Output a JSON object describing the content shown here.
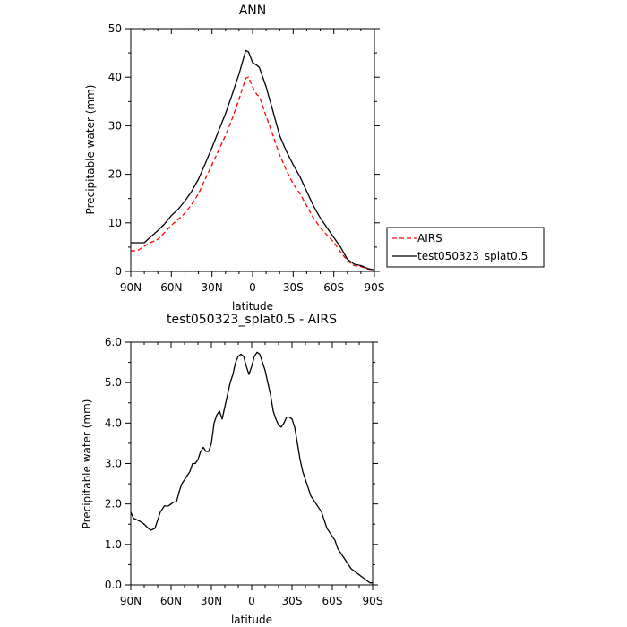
{
  "chart_data": [
    {
      "type": "line",
      "title": "ANN",
      "xlabel": "latitude",
      "ylabel": "Precipitable water (mm)",
      "x_ticks": [
        "90N",
        "60N",
        "30N",
        "0",
        "30S",
        "60S",
        "90S"
      ],
      "x_tick_values": [
        90,
        60,
        30,
        0,
        -30,
        -60,
        -90
      ],
      "xlim": [
        90,
        -90
      ],
      "ylim": [
        0,
        50
      ],
      "y_ticks": [
        "0",
        "10",
        "20",
        "30",
        "40",
        "50"
      ],
      "y_tick_values": [
        0,
        10,
        20,
        30,
        40,
        50
      ],
      "grid": false,
      "legend_position": "right, outside plot",
      "series": [
        {
          "name": "AIRS",
          "color": "#ff0000",
          "dash": "dashed",
          "x": [
            90,
            85,
            80,
            75,
            70,
            65,
            60,
            55,
            50,
            45,
            40,
            35,
            30,
            25,
            20,
            15,
            10,
            5,
            3,
            0,
            -3,
            -5,
            -10,
            -15,
            -20,
            -25,
            -30,
            -35,
            -40,
            -45,
            -50,
            -55,
            -60,
            -65,
            -70,
            -75,
            -80,
            -85,
            -90
          ],
          "values": [
            4.2,
            4.3,
            5.2,
            6.0,
            6.6,
            8.0,
            9.5,
            10.7,
            12.0,
            13.8,
            16.0,
            19.0,
            22.0,
            25.0,
            28.0,
            31.5,
            35.5,
            39.8,
            40.0,
            38.0,
            36.5,
            36.0,
            32.0,
            28.0,
            24.0,
            20.8,
            18.0,
            16.0,
            13.5,
            11.0,
            9.0,
            7.5,
            6.0,
            4.0,
            2.2,
            1.2,
            1.0,
            0.5,
            0.3
          ]
        },
        {
          "name": "test050323_splat0.5",
          "color": "#000000",
          "dash": "solid",
          "x": [
            90,
            85,
            80,
            75,
            70,
            65,
            60,
            55,
            50,
            45,
            40,
            35,
            30,
            25,
            20,
            15,
            10,
            5,
            3,
            0,
            -3,
            -5,
            -10,
            -15,
            -20,
            -25,
            -30,
            -35,
            -40,
            -45,
            -50,
            -55,
            -60,
            -65,
            -70,
            -75,
            -80,
            -85,
            -90
          ],
          "values": [
            5.9,
            5.9,
            5.9,
            7.2,
            8.4,
            9.8,
            11.5,
            12.8,
            14.5,
            16.5,
            19.0,
            22.2,
            25.5,
            29.0,
            32.5,
            36.5,
            40.7,
            45.5,
            45.2,
            43.0,
            42.5,
            42.0,
            38.0,
            33.0,
            28.0,
            24.7,
            22.0,
            19.5,
            16.5,
            13.5,
            11.0,
            9.0,
            7.0,
            5.0,
            2.5,
            1.5,
            1.2,
            0.6,
            0.3
          ]
        }
      ]
    },
    {
      "type": "line",
      "title": "test050323_splat0.5 - AIRS",
      "xlabel": "latitude",
      "ylabel": "Precipitable water (mm)",
      "x_ticks": [
        "90N",
        "60N",
        "30N",
        "0",
        "30S",
        "60S",
        "90S"
      ],
      "x_tick_values": [
        90,
        60,
        30,
        0,
        -30,
        -60,
        -90
      ],
      "xlim": [
        90,
        -90
      ],
      "ylim": [
        0,
        6
      ],
      "y_ticks": [
        "0.0",
        "1.0",
        "2.0",
        "3.0",
        "4.0",
        "5.0",
        "6.0"
      ],
      "y_tick_values": [
        0,
        1,
        2,
        3,
        4,
        5,
        6
      ],
      "grid": false,
      "series": [
        {
          "color": "#000000",
          "dash": "solid",
          "x": [
            90,
            88,
            85,
            82,
            80,
            77,
            75,
            72,
            70,
            68,
            65,
            62,
            60,
            58,
            56,
            54,
            52,
            50,
            48,
            46,
            44,
            42,
            40,
            38,
            36,
            34,
            32,
            30,
            28,
            26,
            24,
            22,
            20,
            18,
            16,
            14,
            12,
            10,
            8,
            6,
            4,
            2,
            0,
            -2,
            -4,
            -6,
            -8,
            -10,
            -12,
            -14,
            -16,
            -18,
            -20,
            -22,
            -24,
            -26,
            -28,
            -30,
            -32,
            -34,
            -36,
            -38,
            -40,
            -42,
            -44,
            -46,
            -48,
            -50,
            -52,
            -54,
            -56,
            -58,
            -60,
            -62,
            -64,
            -66,
            -68,
            -70,
            -72,
            -74,
            -76,
            -78,
            -80,
            -82,
            -84,
            -86,
            -88,
            -90
          ],
          "values": [
            1.8,
            1.65,
            1.6,
            1.55,
            1.5,
            1.4,
            1.35,
            1.4,
            1.6,
            1.8,
            1.95,
            1.95,
            2.0,
            2.05,
            2.05,
            2.3,
            2.5,
            2.6,
            2.7,
            2.8,
            3.0,
            3.0,
            3.1,
            3.3,
            3.4,
            3.3,
            3.3,
            3.5,
            4.0,
            4.2,
            4.3,
            4.1,
            4.4,
            4.7,
            5.0,
            5.2,
            5.5,
            5.65,
            5.7,
            5.65,
            5.4,
            5.2,
            5.4,
            5.65,
            5.75,
            5.7,
            5.5,
            5.3,
            5.0,
            4.7,
            4.3,
            4.1,
            3.95,
            3.9,
            4.0,
            4.15,
            4.15,
            4.1,
            3.9,
            3.5,
            3.1,
            2.8,
            2.6,
            2.4,
            2.2,
            2.1,
            2.0,
            1.9,
            1.8,
            1.6,
            1.4,
            1.3,
            1.2,
            1.1,
            0.9,
            0.8,
            0.7,
            0.6,
            0.5,
            0.4,
            0.35,
            0.3,
            0.25,
            0.2,
            0.15,
            0.1,
            0.05,
            0.05
          ]
        }
      ]
    }
  ]
}
